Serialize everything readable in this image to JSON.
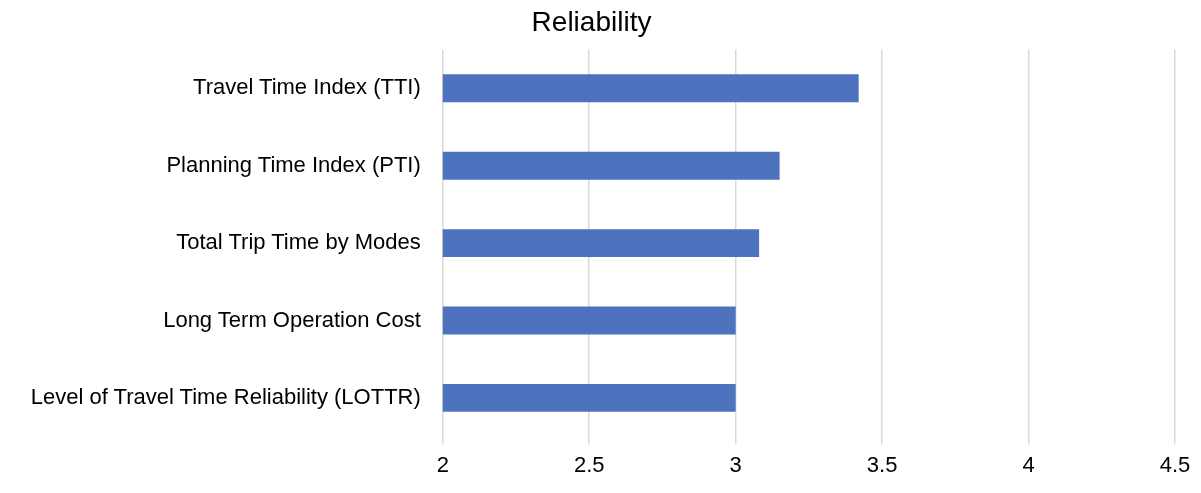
{
  "chart_data": {
    "type": "bar",
    "orientation": "horizontal",
    "title": "Reliability",
    "categories": [
      "Travel Time Index (TTI)",
      "Planning Time Index (PTI)",
      "Total Trip Time by Modes",
      "Long Term Operation Cost",
      "Level of Travel Time Reliability (LOTTR)"
    ],
    "values": [
      3.42,
      3.15,
      3.08,
      3,
      3
    ],
    "color": "#4e73be",
    "xlim": [
      2,
      4.5
    ],
    "xticks": [
      2,
      2.5,
      3,
      3.5,
      4,
      4.5
    ],
    "grid": "x",
    "legend": false
  }
}
